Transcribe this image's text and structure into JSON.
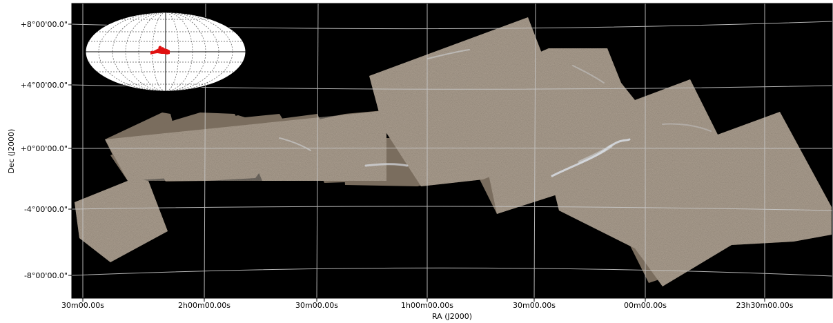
{
  "map": {
    "xlabel": "RA (J2000)",
    "ylabel": "Dec (J2000)",
    "x_ticks": [
      "30m00.00s",
      "2h00m00.00s",
      "30m00.00s",
      "1h00m00.00s",
      "30m00.00s",
      "00m00.00s",
      "23h30m00.00s"
    ],
    "y_ticks": [
      "+8°00'00.0\"",
      "+4°00'00.0\"",
      "+0°00'00.0\"",
      "-4°00'00.0\"",
      "-8°00'00.0\""
    ],
    "grid": true,
    "background_color": "#000000",
    "survey_color": "#7a6d5e",
    "grid_color": "#c8c8c8",
    "inset": {
      "type": "full-sky aitoff projection",
      "position": "top-left",
      "footprint_color": "#e01010"
    }
  }
}
